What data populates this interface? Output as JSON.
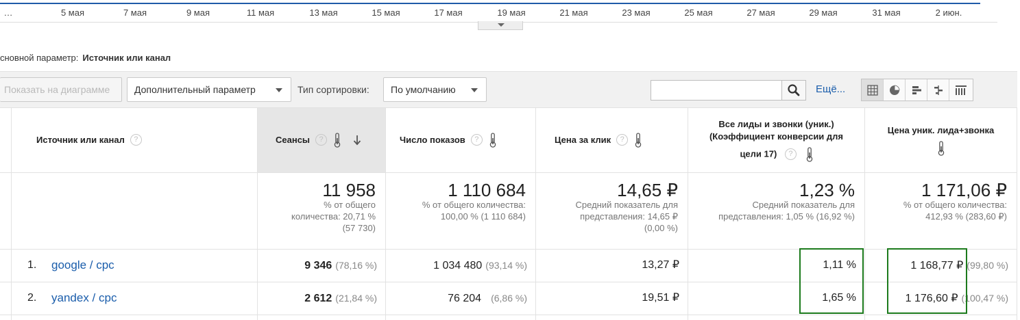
{
  "date_axis": {
    "labels": [
      "…",
      "5 мая",
      "7 мая",
      "9 мая",
      "11 мая",
      "13 мая",
      "15 мая",
      "17 мая",
      "19 мая",
      "21 мая",
      "23 мая",
      "25 мая",
      "27 мая",
      "29 мая",
      "31 мая",
      "2 июн."
    ]
  },
  "primary_dimension": {
    "label": "сновной параметр:",
    "value": "Источник или канал"
  },
  "toolbar": {
    "plot_rows_label": "Показать на диаграмме",
    "secondary_dimension_label": "Дополнительный параметр",
    "sort_type_label": "Тип сортировки:",
    "sort_type_value": "По умолчанию",
    "search_value": "",
    "more_label": "Ещё...",
    "views": [
      "table-view-icon",
      "pie-view-icon",
      "bar-view-icon",
      "comparison-view-icon",
      "pivot-view-icon"
    ]
  },
  "table": {
    "columns": [
      {
        "label": "Источник или канал"
      },
      {
        "label": "Сеансы"
      },
      {
        "label": "Число показов"
      },
      {
        "label": "Цена за клик"
      },
      {
        "label_line1": "Все лиды и звонки (уник.)",
        "label_line2": "(Коэффициент конверсии для",
        "label_line3": "цели 17)"
      },
      {
        "label": "Цена уник. лида+звонка"
      }
    ],
    "totals": [
      {
        "value": "11 958",
        "sub1": "% от общего",
        "sub2": "количества: 20,71 %",
        "sub3": "(57 730)"
      },
      {
        "value": "1 110 684",
        "sub1": "% от общего количества:",
        "sub2": "100,00 % (1 110 684)",
        "sub3": ""
      },
      {
        "value": "14,65 ₽",
        "sub1": "Средний показатель для",
        "sub2": "представления: 14,65 ₽",
        "sub3": "(0,00 %)"
      },
      {
        "value": "1,23 %",
        "sub1": "Средний показатель для",
        "sub2": "представления: 1,05 % (16,92 %)",
        "sub3": ""
      },
      {
        "value": "1 171,06 ₽",
        "sub1": "% от общего количества:",
        "sub2": "412,93 % (283,60 ₽)",
        "sub3": ""
      }
    ],
    "rows": [
      {
        "index": "1.",
        "source": "google / cpc",
        "sessions": "9 346",
        "sessions_pct": "(78,16 %)",
        "impressions": "1 034 480",
        "impressions_pct": "(93,14 %)",
        "cpc": "13,27 ₽",
        "conv_rate": "1,11 %",
        "cost_per_lead": "1 168,77 ₽",
        "cost_per_lead_pct": "(99,80 %)"
      },
      {
        "index": "2.",
        "source": "yandex / cpc",
        "sessions": "2 612",
        "sessions_pct": "(21,84 %)",
        "impressions": "76 204",
        "impressions_pct": "(6,86 %)",
        "cpc": "19,51 ₽",
        "conv_rate": "1,65 %",
        "cost_per_lead": "1 176,60 ₽",
        "cost_per_lead_pct": "(100,47 %)"
      }
    ]
  },
  "colors": {
    "accent_line": "#1f5ba8",
    "link": "#1a5dab",
    "highlight_border": "#1c7a1c"
  }
}
